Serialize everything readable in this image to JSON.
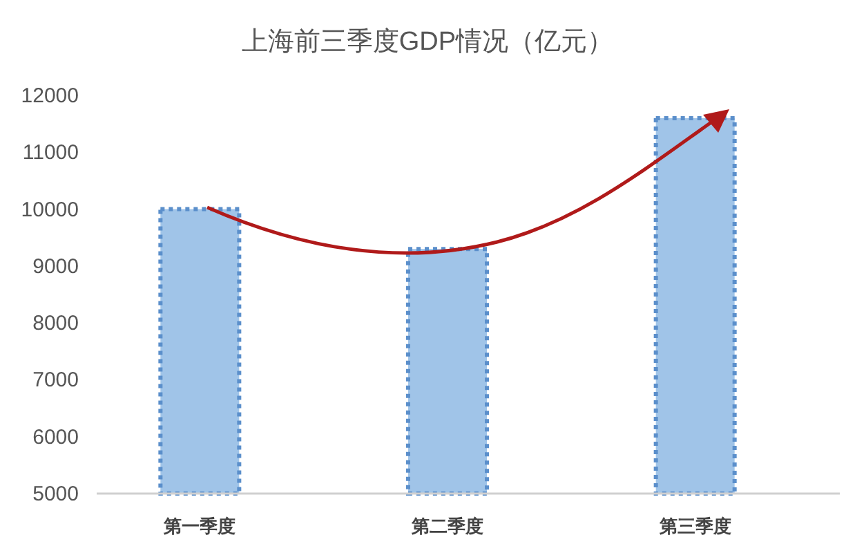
{
  "chart_data": {
    "type": "bar",
    "title": "上海前三季度GDP情况（亿元）",
    "categories": [
      "第一季度",
      "第二季度",
      "第三季度"
    ],
    "values": [
      10000,
      9300,
      11600
    ],
    "color": "#a0c4e8",
    "ylim": [
      5000,
      12000
    ],
    "yticks": [
      5000,
      6000,
      7000,
      8000,
      9000,
      10000,
      11000,
      12000
    ],
    "grid": false
  }
}
